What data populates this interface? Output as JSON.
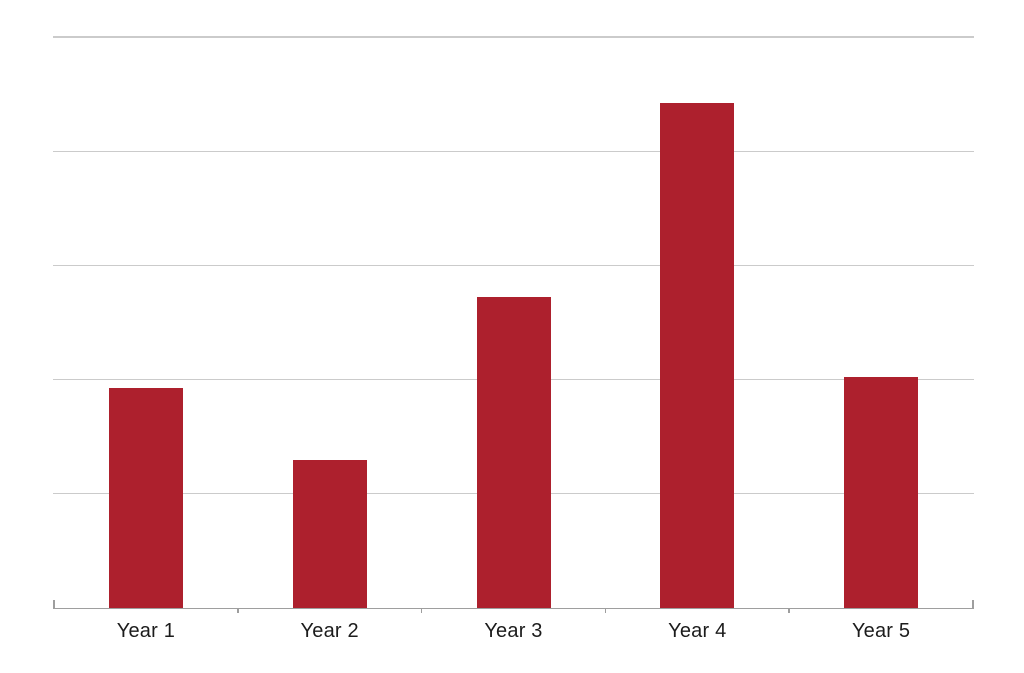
{
  "chart_data": {
    "type": "bar",
    "categories": [
      "Year 1",
      "Year 2",
      "Year 3",
      "Year 4",
      "Year 5"
    ],
    "values": [
      38.5,
      26,
      54.5,
      88.5,
      40.5
    ],
    "title": "",
    "xlabel": "",
    "ylabel": "",
    "ylim": [
      0,
      100
    ],
    "gridline_step": 20,
    "grid": "horizontal",
    "y_tick_labels_visible": false,
    "legend_position": "none",
    "bar_color": "#ad202d"
  },
  "colors": {
    "bar": "#ad202d",
    "gridline": "#cbcbcb",
    "axis": "#9e9e9e",
    "label": "#1c1c1c",
    "background": "#ffffff"
  }
}
